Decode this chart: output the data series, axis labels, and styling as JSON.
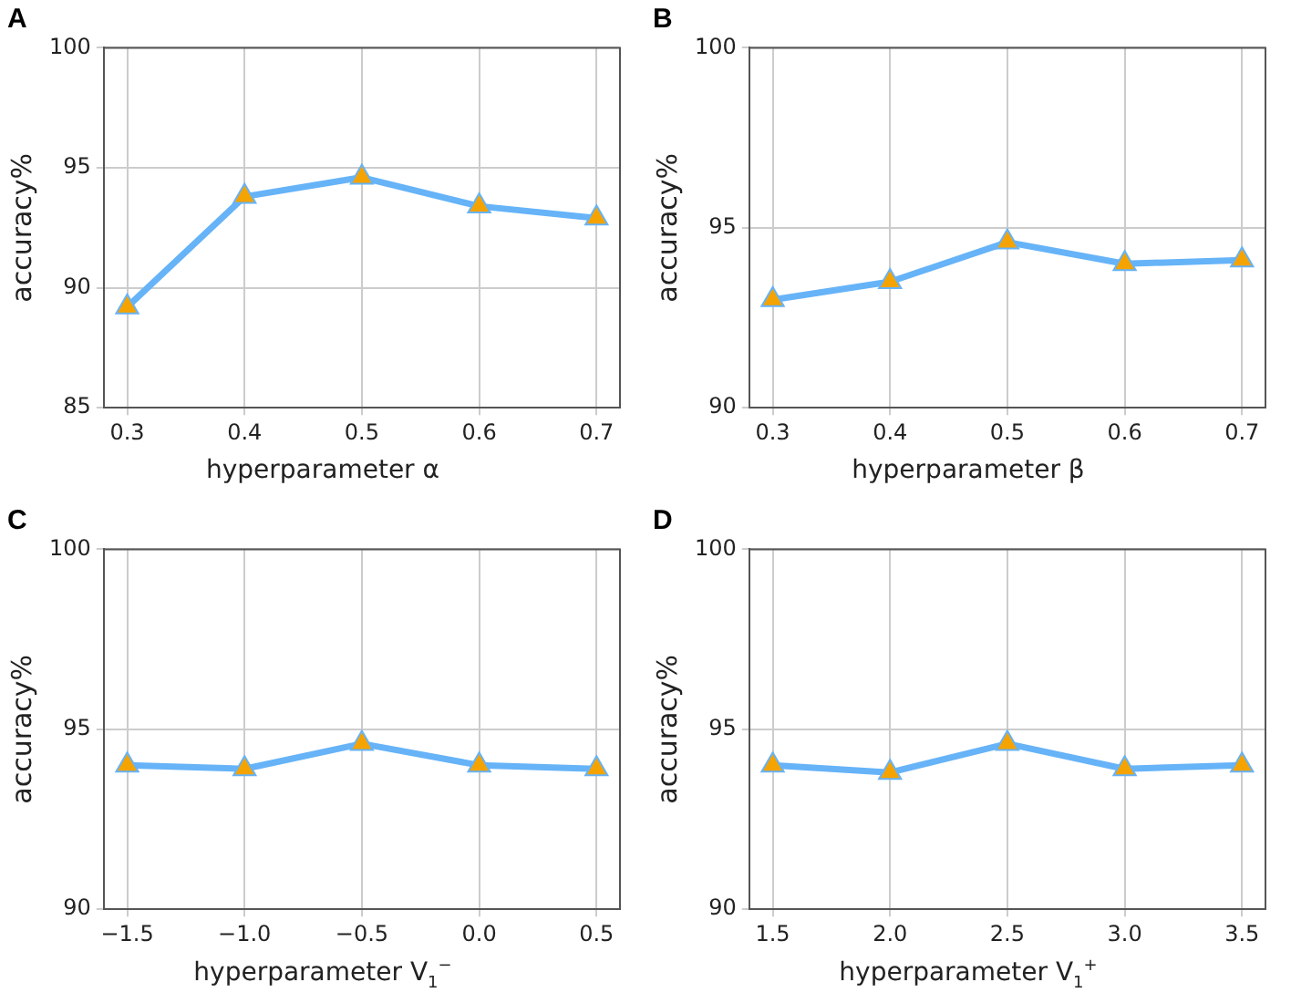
{
  "chart_data": [
    {
      "type": "line",
      "title": "A",
      "xlabel": "hyperparameter α",
      "ylabel": "accuracy%",
      "x": [
        0.3,
        0.4,
        0.5,
        0.6,
        0.7
      ],
      "xlim": [
        0.28,
        0.72
      ],
      "xticks": [
        0.3,
        0.4,
        0.5,
        0.6,
        0.7
      ],
      "ylim": [
        85,
        100
      ],
      "yticks": [
        85,
        90,
        95,
        100
      ],
      "grid": true,
      "legend": false,
      "marker": "triangle",
      "line_style": "solid",
      "series": [
        {
          "color": "#66b3f8",
          "colors": [
            "#f5a300",
            "#f5a300",
            "#f5a300",
            "#f5a300",
            "#f5a300"
          ],
          "values": [
            89.2,
            93.8,
            94.6,
            93.4,
            92.9
          ]
        }
      ]
    },
    {
      "type": "line",
      "title": "B",
      "xlabel": "hyperparameter β",
      "ylabel": "accuracy%",
      "x": [
        0.3,
        0.4,
        0.5,
        0.6,
        0.7
      ],
      "xlim": [
        0.28,
        0.72
      ],
      "xticks": [
        0.3,
        0.4,
        0.5,
        0.6,
        0.7
      ],
      "ylim": [
        90,
        100
      ],
      "yticks": [
        90,
        95,
        100
      ],
      "grid": true,
      "legend": false,
      "marker": "triangle",
      "line_style": "solid",
      "series": [
        {
          "color": "#66b3f8",
          "colors": [
            "#f5a300",
            "#f5a300",
            "#f5a300",
            "#f5a300",
            "#f5a300"
          ],
          "values": [
            93.0,
            93.5,
            94.6,
            94.0,
            94.1
          ]
        }
      ]
    },
    {
      "type": "line",
      "title": "C",
      "xlabel": "hyperparameter V$_{1}$$^{−}$",
      "ylabel": "accuracy%",
      "x": [
        -1.5,
        -1.0,
        -0.5,
        0.0,
        0.5
      ],
      "xlim": [
        -1.6,
        0.6
      ],
      "xticks": [
        {
          "value": -1.5,
          "label": "−1.5"
        },
        {
          "value": -1.0,
          "label": "−1.0"
        },
        {
          "value": -0.5,
          "label": "−0.5"
        },
        {
          "value": 0,
          "label": "0.0"
        },
        0.5
      ],
      "ylim": [
        90,
        100
      ],
      "yticks": [
        90,
        95,
        100
      ],
      "grid": true,
      "legend": false,
      "marker": "triangle",
      "line_style": "solid",
      "series": [
        {
          "color": "#66b3f8",
          "colors": [
            "#f5a300",
            "#f5a300",
            "#f5a300",
            "#f5a300",
            "#f5a300"
          ],
          "values": [
            94.0,
            93.9,
            94.6,
            94.0,
            93.9
          ]
        }
      ]
    },
    {
      "type": "line",
      "title": "D",
      "xlabel": "hyperparameter V$_{1}$$^{+}$",
      "ylabel": "accuracy%",
      "x": [
        1.5,
        2.0,
        2.5,
        3.0,
        3.5
      ],
      "xlim": [
        1.4,
        3.6
      ],
      "xticks": [
        1.5,
        {
          "value": 2,
          "label": "2.0"
        },
        2.5,
        {
          "value": 3,
          "label": "3.0"
        },
        3.5
      ],
      "ylim": [
        90,
        100
      ],
      "yticks": [
        90,
        95,
        100
      ],
      "grid": true,
      "legend": false,
      "marker": "triangle",
      "line_style": "solid",
      "series": [
        {
          "color": "#66b3f8",
          "colors": [
            "#f5a300",
            "#f5a300",
            "#f5a300",
            "#f5a300",
            "#f5a300"
          ],
          "values": [
            94.0,
            93.8,
            94.6,
            93.9,
            94.0
          ]
        }
      ]
    }
  ]
}
